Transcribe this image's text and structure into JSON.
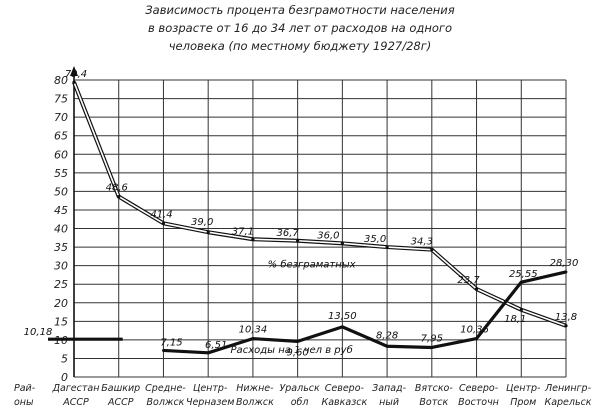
{
  "chart_data": {
    "type": "line",
    "title_lines": [
      "Зависимость процента безграмотности населения",
      "в возрасте от 16 до 34 лет от расходов на одного",
      "человека (по местному бюджету 1927/28г)"
    ],
    "y_ticks": [
      "0",
      "5",
      "10",
      "15",
      "20",
      "25",
      "30",
      "35",
      "40",
      "45",
      "50",
      "55",
      "60",
      "65",
      "70",
      "75",
      "80"
    ],
    "ylim": [
      0,
      80
    ],
    "grid": true,
    "row_axis_label": [
      "Рай-",
      "оны"
    ],
    "categories": [
      [
        "Дагестан",
        "АССР"
      ],
      [
        "Башкир",
        "АССР"
      ],
      [
        "Средне-",
        "Волжск"
      ],
      [
        "Центр-",
        "Черназем"
      ],
      [
        "Нижне-",
        "Волжск"
      ],
      [
        "Уральск",
        "обл"
      ],
      [
        "Северо-",
        "Кавказск"
      ],
      [
        "Запад-",
        "ный"
      ],
      [
        "Вятско-",
        "Вотск"
      ],
      [
        "Северо-",
        "Восточн"
      ],
      [
        "Центр-",
        "Пром"
      ],
      [
        "Ленингр-",
        "Карельск"
      ]
    ],
    "series": [
      {
        "name": "% безграматных",
        "style": "double-line",
        "values": [
          79.4,
          48.6,
          41.4,
          39.0,
          37.1,
          36.7,
          36.0,
          35.0,
          34.3,
          23.7,
          18.1,
          13.8
        ],
        "labels": [
          "79,4",
          "48,6",
          "41,4",
          "39,0",
          "37,1",
          "36,7",
          "36,0",
          "35,0",
          "34,3",
          "23,7",
          "18,1",
          "13,8"
        ]
      },
      {
        "name": "Расходы на 1 чел в руб",
        "style": "heavy-line",
        "values": [
          10.18,
          10.18,
          7.15,
          6.51,
          10.34,
          9.6,
          13.5,
          8.28,
          7.95,
          10.36,
          25.55,
          28.3
        ],
        "labels": [
          "10,18",
          "",
          "7,15",
          "6,51",
          "10,34",
          "9,60",
          "13,50",
          "8,28",
          "7,95",
          "10,36",
          "25,55",
          "28,30"
        ]
      }
    ]
  }
}
